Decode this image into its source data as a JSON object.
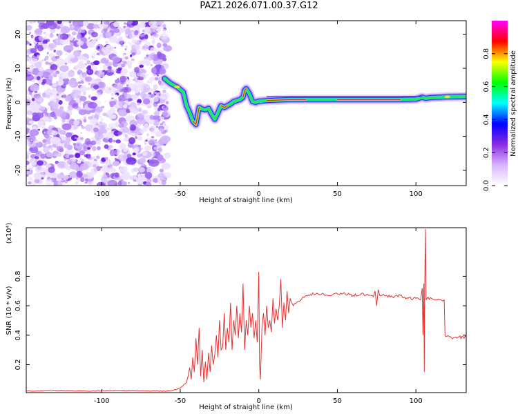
{
  "title": "PAZ1.2026.071.00.37.G12",
  "chart_data": [
    {
      "type": "heatmap",
      "xlabel": "Height of straight line (km)",
      "ylabel": "Frequency (Hz)",
      "xlim": [
        -148,
        132
      ],
      "ylim": [
        -24.5,
        24
      ],
      "xticks": [
        -100,
        -50,
        0,
        50,
        100
      ],
      "yticks": [
        -20,
        -10,
        0,
        10,
        20
      ],
      "ridge": {
        "x": [
          -60,
          -56,
          -52,
          -48,
          -46,
          -44,
          -42,
          -40,
          -38,
          -36,
          -34,
          -32,
          -30,
          -28,
          -26,
          -24,
          -22,
          -20,
          -18,
          -16,
          -14,
          -12,
          -10,
          -9,
          -8,
          -6,
          -4,
          -2,
          0,
          5,
          10,
          20,
          30,
          40,
          50,
          60,
          70,
          80,
          90,
          100,
          104,
          106,
          110,
          120,
          132
        ],
        "y": [
          7,
          5.5,
          4.5,
          3,
          -1,
          -3,
          -5.5,
          -6.5,
          -1.5,
          -2,
          -2.2,
          -1.8,
          -3.5,
          -5,
          -3,
          -1,
          -1.5,
          -1,
          -0.5,
          0.2,
          0.5,
          0.8,
          1.5,
          3.5,
          4,
          2.5,
          0.2,
          0,
          0.3,
          0.5,
          0.6,
          0.8,
          0.8,
          0.8,
          0.8,
          0.8,
          0.8,
          0.8,
          0.8,
          0.9,
          1.5,
          1.2,
          1.4,
          1.6,
          1.7
        ]
      },
      "colorbar": {
        "label": "Normalized spectral amplitude",
        "range": [
          0,
          1
        ],
        "ticks": [
          0,
          0.2,
          0.4,
          0.6,
          0.8
        ],
        "tick_labels": [
          "0.0",
          "0.2",
          "0.4",
          "0.6",
          "0.8"
        ],
        "colors": [
          "#ffffff",
          "#d8b4fe",
          "#8a2be2",
          "#0000ff",
          "#00ffff",
          "#00ff00",
          "#ffff00",
          "#ff0000",
          "#ff00ff"
        ]
      }
    },
    {
      "type": "line",
      "xlabel": "Height of straight line (km)",
      "ylabel": "SNR (10 * v/v)",
      "yscale_label": "(x10⁴)",
      "xlim": [
        -148,
        132
      ],
      "ylim": [
        0.01,
        1.13
      ],
      "xticks": [
        -100,
        -50,
        0,
        50,
        100
      ],
      "yticks": [
        0.2,
        0.4,
        0.6,
        0.8
      ],
      "line_color": "#e53030",
      "series": [
        {
          "x": [
            -148,
            -130,
            -110,
            -90,
            -70,
            -60,
            -55,
            -50,
            -48,
            -46,
            -45,
            -44,
            -43,
            -42,
            -41,
            -40,
            -39,
            -38,
            -37,
            -36,
            -35,
            -34,
            -33,
            -32,
            -31,
            -30,
            -29,
            -28,
            -27,
            -26,
            -25,
            -24,
            -23,
            -22,
            -21,
            -20,
            -19,
            -18,
            -17,
            -16,
            -15,
            -14,
            -13,
            -12,
            -11,
            -10,
            -9,
            -8,
            -7,
            -6,
            -5,
            -4,
            -3,
            -2,
            -1,
            0,
            0.5,
            1,
            2,
            3,
            4,
            5,
            6,
            7,
            8,
            9,
            10,
            11,
            12,
            13,
            14,
            15,
            16,
            17,
            18,
            19,
            20,
            22,
            25,
            28,
            30,
            35,
            40,
            45,
            50,
            55,
            60,
            65,
            70,
            73,
            74,
            75,
            76,
            77,
            80,
            85,
            90,
            95,
            100,
            103,
            104,
            104.5,
            105,
            105.3,
            105.6,
            106,
            106.5,
            107,
            110,
            115,
            118,
            118.5,
            119,
            122,
            126,
            130,
            132
          ],
          "y": [
            0.02,
            0.025,
            0.02,
            0.025,
            0.022,
            0.02,
            0.025,
            0.04,
            0.06,
            0.08,
            0.12,
            0.18,
            0.1,
            0.25,
            0.15,
            0.38,
            0.2,
            0.45,
            0.12,
            0.3,
            0.08,
            0.22,
            0.1,
            0.28,
            0.15,
            0.33,
            0.2,
            0.27,
            0.4,
            0.25,
            0.5,
            0.3,
            0.32,
            0.55,
            0.3,
            0.45,
            0.35,
            0.62,
            0.3,
            0.5,
            0.4,
            0.6,
            0.38,
            0.55,
            0.42,
            0.75,
            0.3,
            0.5,
            0.4,
            0.6,
            0.45,
            0.55,
            0.38,
            0.5,
            0.35,
            0.83,
            0.2,
            0.1,
            0.45,
            0.55,
            0.4,
            0.6,
            0.45,
            0.5,
            0.42,
            0.65,
            0.48,
            0.58,
            0.5,
            0.6,
            0.78,
            0.45,
            0.62,
            0.5,
            0.7,
            0.55,
            0.65,
            0.6,
            0.63,
            0.66,
            0.67,
            0.68,
            0.68,
            0.67,
            0.68,
            0.68,
            0.67,
            0.68,
            0.67,
            0.66,
            0.7,
            0.6,
            0.71,
            0.67,
            0.67,
            0.66,
            0.67,
            0.65,
            0.65,
            0.64,
            0.72,
            0.4,
            0.75,
            0.15,
            0.7,
            1.12,
            0.64,
            0.65,
            0.65,
            0.64,
            0.64,
            0.4,
            0.39,
            0.39,
            0.38,
            0.39,
            0.39
          ]
        }
      ]
    }
  ]
}
